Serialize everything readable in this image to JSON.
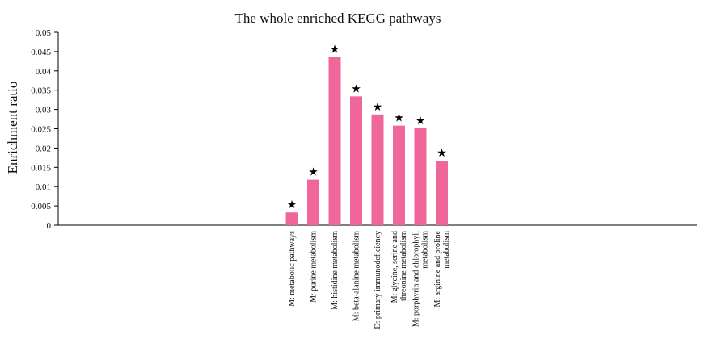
{
  "chart_data": {
    "type": "bar",
    "title": "The whole enriched KEGG pathways",
    "xlabel": "",
    "ylabel": "Enrichment ratio",
    "ylim": [
      0,
      0.05
    ],
    "yticks": [
      "0",
      "0.005",
      "0.01",
      "0.015",
      "0.02",
      "0.025",
      "0.03",
      "0.035",
      "0.04",
      "0.045",
      "0.05"
    ],
    "categories": [
      "M: metabolic pathways",
      "M: purine metabolism",
      "M: histidine metabolism",
      "M: beta-alanine metabolism",
      "D: primary immunodeficiency",
      "M: glycine, serine and threonine metabolism",
      "M: porphyrin and chlorophyll metabolism",
      "M: arginine and proline metabolism"
    ],
    "values": [
      0.0033,
      0.0118,
      0.0436,
      0.0334,
      0.0287,
      0.0258,
      0.0251,
      0.0167
    ],
    "significance_marker": "★",
    "bar_color": "#f0659a",
    "grid": false
  }
}
